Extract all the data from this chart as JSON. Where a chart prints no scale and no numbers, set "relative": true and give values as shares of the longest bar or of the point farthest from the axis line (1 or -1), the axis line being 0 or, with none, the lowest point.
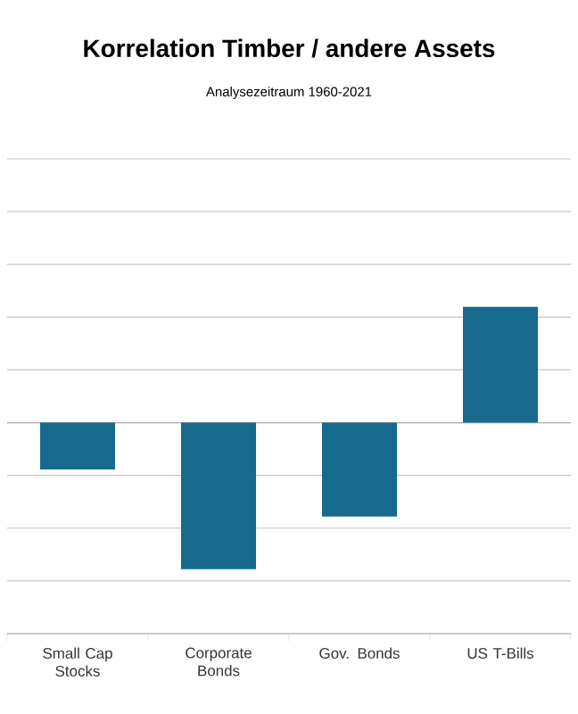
{
  "chart_data": {
    "type": "bar",
    "title": "Korrelation Timber / andere Assets",
    "subtitle": "Analysezeitraum 1960-2021",
    "categories": [
      "Small Cap Stocks",
      "Corporate Bonds",
      "Gov. Bonds",
      "US T-Bills"
    ],
    "values": [
      -0.32,
      -1,
      -0.64,
      0.79
    ],
    "color": "#17698e",
    "relative": true,
    "grid": "y"
  }
}
